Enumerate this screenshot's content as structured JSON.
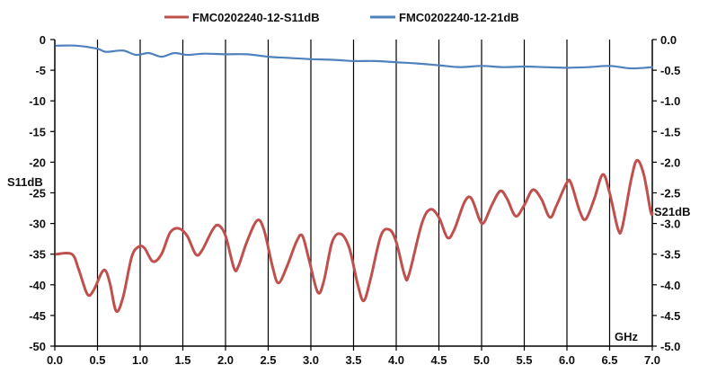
{
  "chart_data": {
    "type": "line",
    "xlabel": "GHz",
    "ylabel_left": "S11dB",
    "ylabel_right": "S21dB",
    "xlim": [
      0,
      7
    ],
    "ylim_left": [
      -50,
      0
    ],
    "ylim_right": [
      -5,
      0
    ],
    "x_ticks": [
      "0.0",
      "0.5",
      "1.0",
      "1.5",
      "2.0",
      "2.5",
      "3.0",
      "3.5",
      "4.0",
      "4.5",
      "5.0",
      "5.5",
      "6.0",
      "6.5",
      "7.0"
    ],
    "y_left_ticks": [
      "0",
      "-5",
      "-10",
      "-15",
      "-20",
      "-25",
      "-30",
      "-35",
      "-40",
      "-45",
      "-50"
    ],
    "y_right_ticks": [
      "0.0",
      "-0.5",
      "-1.0",
      "-1.5",
      "-2.0",
      "-2.5",
      "-3.0",
      "-3.5",
      "-4.0",
      "-4.5",
      "-5.0"
    ],
    "grid": "vertical",
    "legend_position": "top",
    "series": [
      {
        "name": "FMC0202240-12-S11dB",
        "axis": "left",
        "color": "#c0504d",
        "points": [
          [
            0.02,
            -35
          ],
          [
            0.2,
            -35
          ],
          [
            0.28,
            -37.5
          ],
          [
            0.38,
            -41.5
          ],
          [
            0.45,
            -41
          ],
          [
            0.55,
            -38
          ],
          [
            0.6,
            -37.8
          ],
          [
            0.65,
            -40
          ],
          [
            0.72,
            -44.3
          ],
          [
            0.8,
            -42
          ],
          [
            0.9,
            -35.5
          ],
          [
            0.98,
            -33.8
          ],
          [
            1.05,
            -34
          ],
          [
            1.15,
            -36.2
          ],
          [
            1.25,
            -35
          ],
          [
            1.35,
            -31.5
          ],
          [
            1.45,
            -30.8
          ],
          [
            1.55,
            -32
          ],
          [
            1.65,
            -35
          ],
          [
            1.72,
            -34.5
          ],
          [
            1.85,
            -31
          ],
          [
            1.92,
            -30.3
          ],
          [
            2.0,
            -32
          ],
          [
            2.1,
            -37.3
          ],
          [
            2.15,
            -37
          ],
          [
            2.25,
            -33
          ],
          [
            2.37,
            -29.5
          ],
          [
            2.45,
            -31
          ],
          [
            2.55,
            -37
          ],
          [
            2.62,
            -39.7
          ],
          [
            2.72,
            -37
          ],
          [
            2.83,
            -33
          ],
          [
            2.9,
            -32
          ],
          [
            2.98,
            -36
          ],
          [
            3.08,
            -41.2
          ],
          [
            3.15,
            -39.5
          ],
          [
            3.25,
            -33
          ],
          [
            3.35,
            -31.7
          ],
          [
            3.45,
            -34
          ],
          [
            3.55,
            -40
          ],
          [
            3.62,
            -42.6
          ],
          [
            3.7,
            -39
          ],
          [
            3.82,
            -32
          ],
          [
            3.92,
            -31
          ],
          [
            4.0,
            -33
          ],
          [
            4.1,
            -38.5
          ],
          [
            4.15,
            -38.3
          ],
          [
            4.3,
            -30
          ],
          [
            4.4,
            -27.7
          ],
          [
            4.5,
            -29
          ],
          [
            4.6,
            -32.3
          ],
          [
            4.68,
            -31
          ],
          [
            4.8,
            -26.5
          ],
          [
            4.88,
            -25.9
          ],
          [
            4.98,
            -29.5
          ],
          [
            5.03,
            -29.8
          ],
          [
            5.12,
            -27
          ],
          [
            5.22,
            -24.7
          ],
          [
            5.3,
            -26
          ],
          [
            5.4,
            -28.8
          ],
          [
            5.5,
            -27
          ],
          [
            5.6,
            -24.5
          ],
          [
            5.7,
            -26
          ],
          [
            5.8,
            -29
          ],
          [
            5.88,
            -27
          ],
          [
            6.0,
            -23.3
          ],
          [
            6.05,
            -23.5
          ],
          [
            6.15,
            -28
          ],
          [
            6.22,
            -29.3
          ],
          [
            6.32,
            -26
          ],
          [
            6.42,
            -22
          ],
          [
            6.5,
            -25
          ],
          [
            6.6,
            -31
          ],
          [
            6.65,
            -30.5
          ],
          [
            6.75,
            -23
          ],
          [
            6.82,
            -19.7
          ],
          [
            6.9,
            -22
          ],
          [
            6.98,
            -28
          ],
          [
            7.0,
            -28.3
          ]
        ]
      },
      {
        "name": "FMC0202240-12-21dB",
        "axis": "right",
        "color": "#4f81bd",
        "points": [
          [
            0.02,
            -0.1
          ],
          [
            0.25,
            -0.1
          ],
          [
            0.5,
            -0.15
          ],
          [
            0.6,
            -0.2
          ],
          [
            0.8,
            -0.18
          ],
          [
            0.95,
            -0.25
          ],
          [
            1.1,
            -0.22
          ],
          [
            1.25,
            -0.28
          ],
          [
            1.4,
            -0.22
          ],
          [
            1.55,
            -0.25
          ],
          [
            1.75,
            -0.23
          ],
          [
            2.0,
            -0.24
          ],
          [
            2.25,
            -0.24
          ],
          [
            2.5,
            -0.28
          ],
          [
            2.75,
            -0.3
          ],
          [
            3.0,
            -0.32
          ],
          [
            3.25,
            -0.33
          ],
          [
            3.5,
            -0.35
          ],
          [
            3.75,
            -0.35
          ],
          [
            4.0,
            -0.37
          ],
          [
            4.25,
            -0.39
          ],
          [
            4.5,
            -0.42
          ],
          [
            4.75,
            -0.45
          ],
          [
            5.0,
            -0.43
          ],
          [
            5.25,
            -0.45
          ],
          [
            5.5,
            -0.44
          ],
          [
            5.75,
            -0.45
          ],
          [
            6.0,
            -0.46
          ],
          [
            6.25,
            -0.45
          ],
          [
            6.5,
            -0.43
          ],
          [
            6.75,
            -0.47
          ],
          [
            7.0,
            -0.45
          ]
        ]
      }
    ]
  }
}
